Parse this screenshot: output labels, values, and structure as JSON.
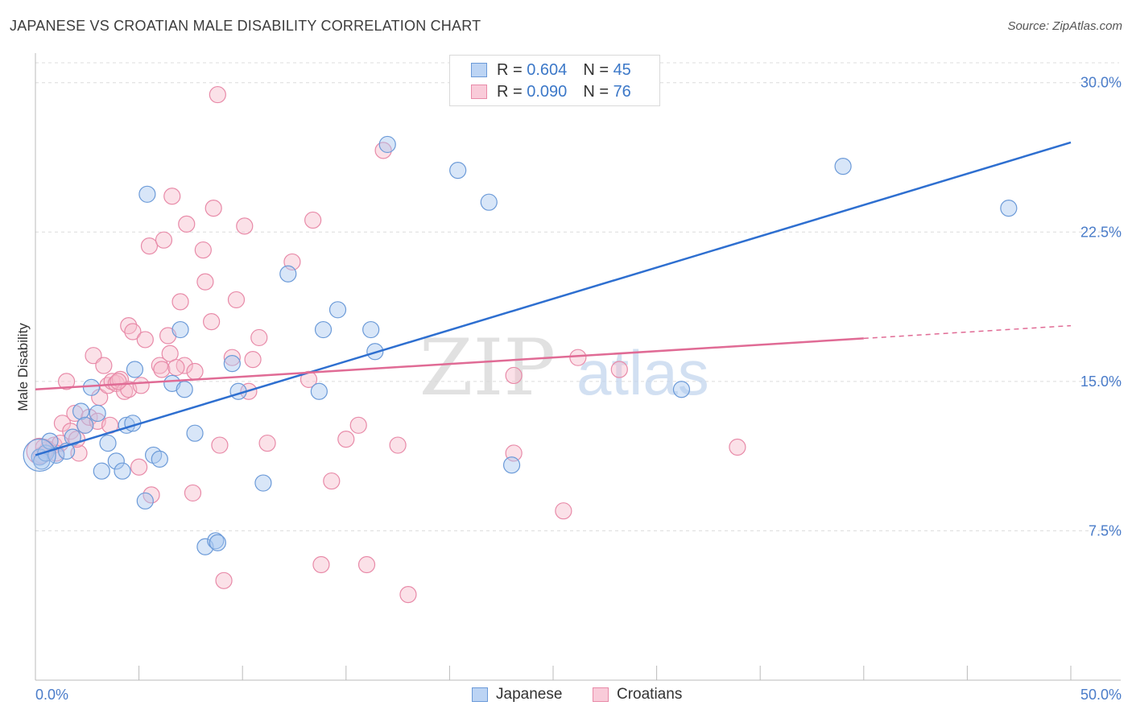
{
  "title": "JAPANESE VS CROATIAN MALE DISABILITY CORRELATION CHART",
  "source": "Source: ZipAtlas.com",
  "watermark": {
    "zip": "ZIP",
    "atlas": "atlas"
  },
  "colors": {
    "blue_fill": "#a9c8f0",
    "blue_stroke": "#6b9ad8",
    "blue_line": "#2e6fd0",
    "pink_fill": "#f7bccd",
    "pink_stroke": "#e88aa8",
    "pink_line": "#e06b95",
    "grid": "#dcdcdc",
    "tick_text": "#4a7cc9"
  },
  "legend": {
    "rows": [
      {
        "r_label": "R = ",
        "r_value": "0.604",
        "n_label": "N = ",
        "n_value": "45",
        "series": "Japanese"
      },
      {
        "r_label": "R = ",
        "r_value": "0.090",
        "n_label": "N = ",
        "n_value": "76",
        "series": "Croatians"
      }
    ]
  },
  "chart_data": {
    "type": "scatter",
    "title": "JAPANESE VS CROATIAN MALE DISABILITY CORRELATION CHART",
    "xlabel": "",
    "ylabel": "Male Disability",
    "xlim": [
      0,
      50
    ],
    "ylim": [
      0,
      31
    ],
    "x_tick_labels": [
      "0.0%",
      "50.0%"
    ],
    "y_ticks": [
      7.5,
      15.0,
      22.5,
      30.0
    ],
    "y_tick_labels": [
      "7.5%",
      "15.0%",
      "22.5%",
      "30.0%"
    ],
    "grid": true,
    "legend_position": "top-center",
    "series": [
      {
        "name": "Japanese",
        "color": "#a9c8f0",
        "trend": {
          "x": [
            0,
            50
          ],
          "y": [
            11.3,
            27.0
          ]
        },
        "points": [
          [
            0.2,
            11.2
          ],
          [
            0.3,
            11.0
          ],
          [
            0.5,
            11.4
          ],
          [
            0.7,
            12.0
          ],
          [
            1.0,
            11.3
          ],
          [
            1.5,
            11.5
          ],
          [
            1.8,
            12.2
          ],
          [
            2.2,
            13.5
          ],
          [
            2.4,
            12.8
          ],
          [
            2.7,
            14.7
          ],
          [
            3.0,
            13.4
          ],
          [
            3.2,
            10.5
          ],
          [
            3.5,
            11.9
          ],
          [
            3.9,
            11.0
          ],
          [
            4.2,
            10.5
          ],
          [
            4.4,
            12.8
          ],
          [
            4.7,
            12.9
          ],
          [
            4.8,
            15.6
          ],
          [
            5.3,
            9.0
          ],
          [
            5.4,
            24.4
          ],
          [
            5.7,
            11.3
          ],
          [
            6.0,
            11.1
          ],
          [
            6.6,
            14.9
          ],
          [
            7.0,
            17.6
          ],
          [
            7.2,
            14.6
          ],
          [
            7.7,
            12.4
          ],
          [
            8.2,
            6.7
          ],
          [
            8.7,
            7.0
          ],
          [
            8.8,
            6.9
          ],
          [
            9.5,
            15.9
          ],
          [
            9.8,
            14.5
          ],
          [
            11.0,
            9.9
          ],
          [
            12.2,
            20.4
          ],
          [
            13.7,
            14.5
          ],
          [
            13.9,
            17.6
          ],
          [
            14.6,
            18.6
          ],
          [
            16.2,
            17.6
          ],
          [
            16.4,
            16.5
          ],
          [
            17.0,
            26.9
          ],
          [
            20.4,
            25.6
          ],
          [
            21.9,
            24.0
          ],
          [
            31.2,
            14.6
          ],
          [
            23.0,
            10.8
          ],
          [
            39.0,
            25.8
          ],
          [
            47.0,
            23.7
          ]
        ]
      },
      {
        "name": "Croatians",
        "color": "#f7bccd",
        "trend": {
          "x": [
            0,
            50
          ],
          "y": [
            14.6,
            17.8
          ],
          "solid_until": 40
        },
        "points": [
          [
            0.3,
            11.3
          ],
          [
            0.6,
            11.6
          ],
          [
            0.9,
            11.8
          ],
          [
            1.2,
            11.9
          ],
          [
            1.3,
            12.9
          ],
          [
            1.5,
            15.0
          ],
          [
            1.7,
            12.5
          ],
          [
            1.9,
            13.4
          ],
          [
            2.1,
            11.4
          ],
          [
            2.4,
            12.8
          ],
          [
            2.6,
            13.2
          ],
          [
            2.8,
            16.3
          ],
          [
            3.0,
            13.0
          ],
          [
            3.1,
            14.2
          ],
          [
            3.3,
            15.8
          ],
          [
            3.5,
            14.8
          ],
          [
            3.7,
            15.0
          ],
          [
            3.9,
            14.9
          ],
          [
            4.1,
            15.1
          ],
          [
            4.3,
            14.5
          ],
          [
            4.5,
            14.6
          ],
          [
            4.5,
            17.8
          ],
          [
            4.7,
            17.5
          ],
          [
            5.0,
            10.7
          ],
          [
            5.1,
            14.8
          ],
          [
            5.3,
            17.1
          ],
          [
            5.5,
            21.8
          ],
          [
            5.6,
            9.3
          ],
          [
            6.0,
            15.8
          ],
          [
            6.1,
            15.6
          ],
          [
            6.2,
            22.1
          ],
          [
            6.4,
            17.3
          ],
          [
            6.5,
            16.4
          ],
          [
            6.6,
            24.3
          ],
          [
            7.0,
            19.0
          ],
          [
            7.2,
            15.8
          ],
          [
            7.3,
            22.9
          ],
          [
            7.6,
            9.4
          ],
          [
            7.7,
            15.5
          ],
          [
            8.1,
            21.6
          ],
          [
            8.2,
            20.0
          ],
          [
            8.5,
            18.0
          ],
          [
            8.6,
            23.7
          ],
          [
            8.8,
            29.4
          ],
          [
            9.1,
            5.0
          ],
          [
            9.5,
            16.2
          ],
          [
            9.7,
            19.1
          ],
          [
            10.1,
            22.8
          ],
          [
            10.3,
            14.5
          ],
          [
            10.8,
            17.2
          ],
          [
            11.2,
            11.9
          ],
          [
            12.4,
            21.0
          ],
          [
            13.2,
            15.1
          ],
          [
            13.4,
            23.1
          ],
          [
            13.8,
            5.8
          ],
          [
            14.3,
            10.0
          ],
          [
            15.0,
            12.1
          ],
          [
            15.6,
            12.8
          ],
          [
            16.0,
            5.8
          ],
          [
            16.8,
            26.6
          ],
          [
            17.5,
            11.8
          ],
          [
            18.0,
            4.3
          ],
          [
            23.1,
            15.3
          ],
          [
            23.1,
            11.4
          ],
          [
            25.5,
            8.5
          ],
          [
            26.2,
            16.2
          ],
          [
            28.2,
            15.6
          ],
          [
            33.9,
            11.7
          ],
          [
            0.4,
            11.7
          ],
          [
            1.0,
            11.4
          ],
          [
            2.0,
            12.1
          ],
          [
            3.6,
            12.8
          ],
          [
            4.0,
            15.0
          ],
          [
            6.8,
            15.7
          ],
          [
            8.9,
            11.8
          ],
          [
            10.5,
            16.1
          ]
        ]
      }
    ]
  },
  "bottom_legend": [
    "Japanese",
    "Croatians"
  ]
}
